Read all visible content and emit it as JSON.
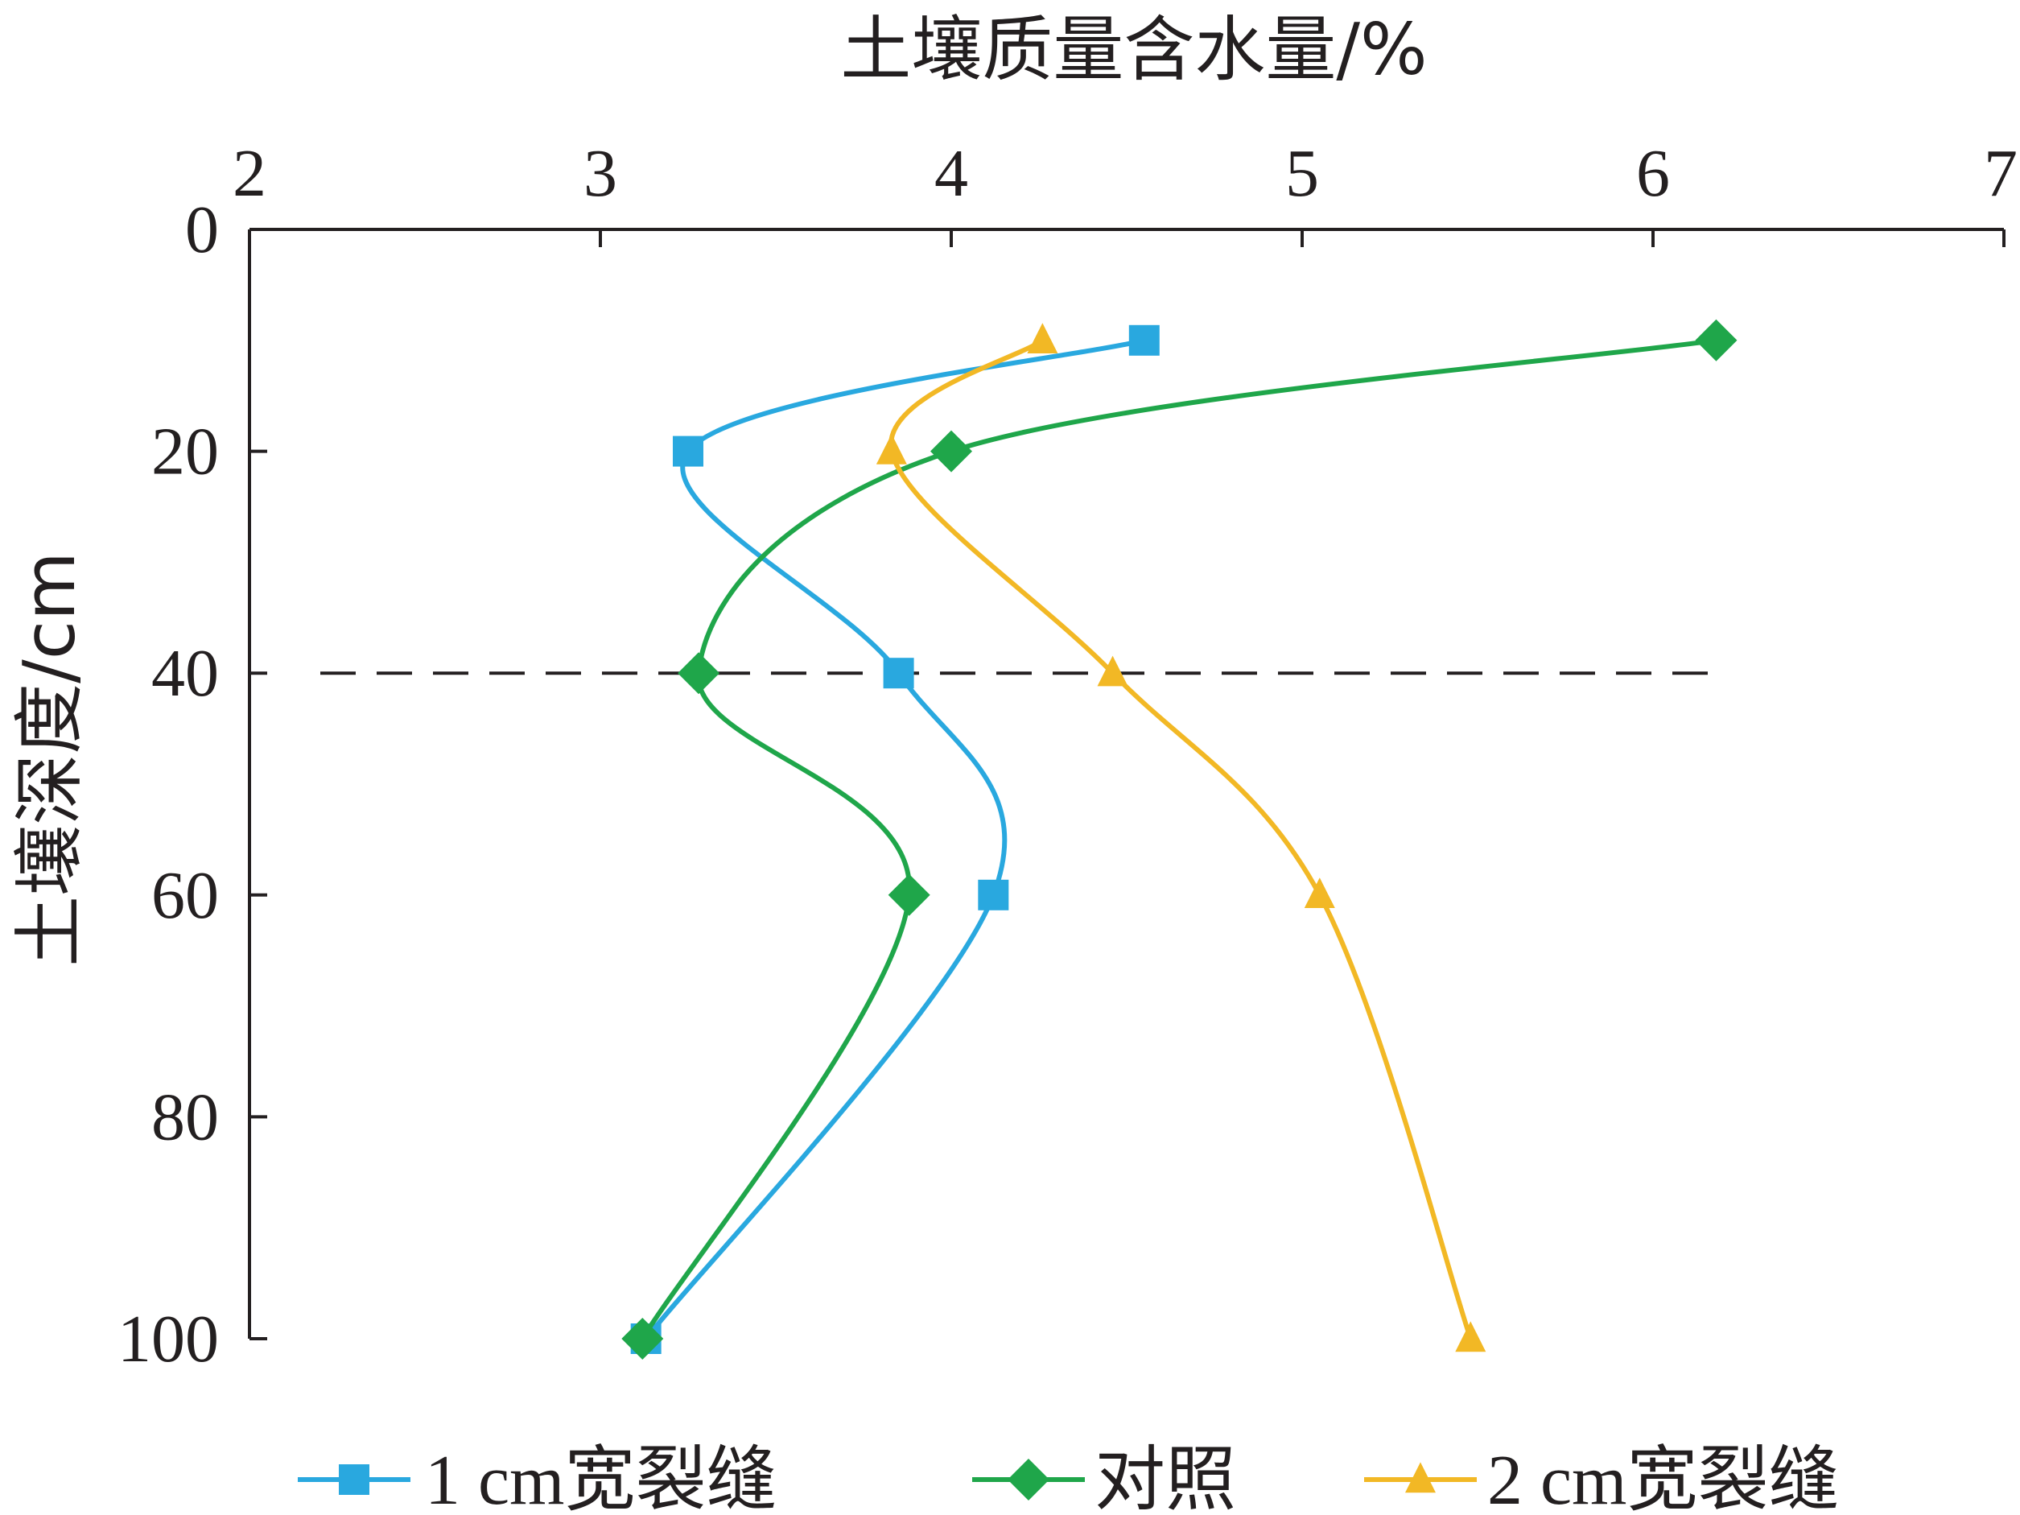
{
  "chart_data": {
    "type": "line",
    "title": "",
    "xlabel": "土壤质量含水量/%",
    "ylabel": "土壤深度/cm",
    "x_axis_position": "top",
    "y_axis_inverted": true,
    "xlim": [
      2,
      7
    ],
    "ylim": [
      0,
      100
    ],
    "x_ticks": [
      "2",
      "3",
      "4",
      "5",
      "6",
      "7"
    ],
    "y_ticks": [
      "0",
      "20",
      "40",
      "60",
      "80",
      "100"
    ],
    "grid": false,
    "reference_line": {
      "y": 40,
      "style": "dashed",
      "x_from": 2,
      "x_to": 6.2
    },
    "legend_position": "bottom",
    "series": [
      {
        "name": "1 cm宽裂缝",
        "marker": "square",
        "color": "#29a8df",
        "points": [
          [
            4.55,
            10
          ],
          [
            3.25,
            20
          ],
          [
            3.85,
            40
          ],
          [
            4.12,
            60
          ],
          [
            3.13,
            100
          ]
        ]
      },
      {
        "name": "对照",
        "marker": "diamond",
        "color": "#1fa64a",
        "points": [
          [
            6.18,
            10
          ],
          [
            4.0,
            20
          ],
          [
            3.28,
            40
          ],
          [
            3.88,
            60
          ],
          [
            3.12,
            100
          ]
        ]
      },
      {
        "name": "2 cm宽裂缝",
        "marker": "triangle",
        "color": "#f2b825",
        "points": [
          [
            4.26,
            10
          ],
          [
            3.83,
            20
          ],
          [
            4.46,
            40
          ],
          [
            5.05,
            60
          ],
          [
            5.48,
            100
          ]
        ]
      }
    ]
  }
}
